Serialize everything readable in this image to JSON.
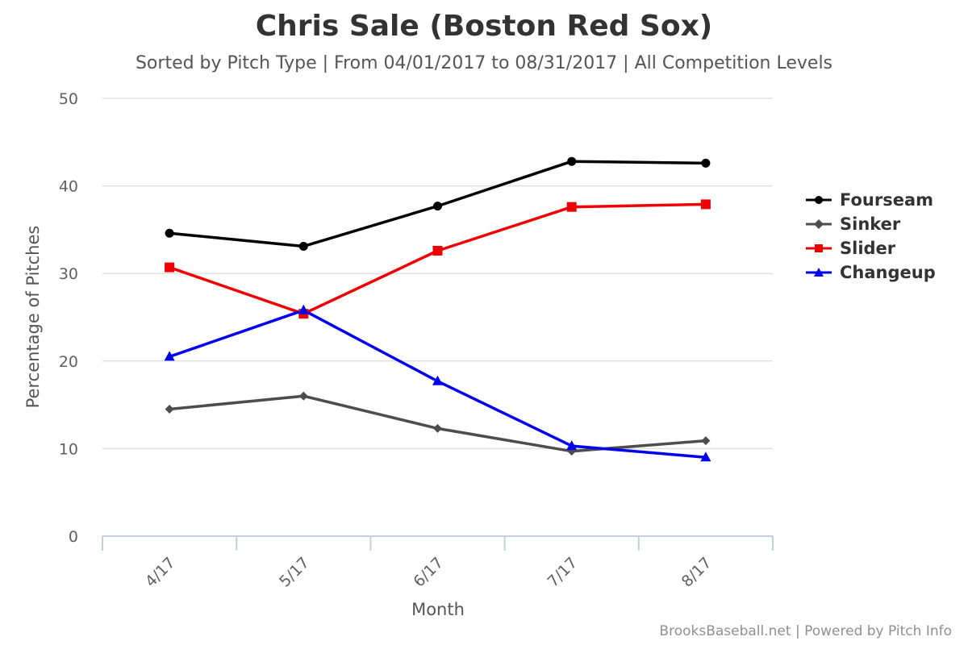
{
  "chart_data": {
    "type": "line",
    "title": "Chris Sale (Boston Red Sox)",
    "subtitle": "Sorted by Pitch Type | From 04/01/2017 to 08/31/2017 | All Competition Levels",
    "xlabel": "Month",
    "ylabel": "Percentage of Pitches",
    "categories": [
      "4/17",
      "5/17",
      "6/17",
      "7/17",
      "8/17"
    ],
    "ylim": [
      0,
      50
    ],
    "yticks": [
      0,
      10,
      20,
      30,
      40,
      50
    ],
    "grid": true,
    "legend_position": "right",
    "series": [
      {
        "name": "Fourseam",
        "color": "#000000",
        "marker": "circle",
        "values": [
          34.6,
          33.1,
          37.7,
          42.8,
          42.6
        ]
      },
      {
        "name": "Sinker",
        "color": "#4d4d4d",
        "marker": "diamond",
        "values": [
          14.5,
          16.0,
          12.3,
          9.7,
          10.9
        ]
      },
      {
        "name": "Slider",
        "color": "#ee0000",
        "marker": "square",
        "values": [
          30.7,
          25.4,
          32.6,
          37.6,
          37.9
        ]
      },
      {
        "name": "Changeup",
        "color": "#0000ee",
        "marker": "triangle",
        "values": [
          20.5,
          25.8,
          17.7,
          10.3,
          9.0
        ]
      }
    ]
  },
  "credits": "BrooksBaseball.net | Powered by Pitch Info"
}
